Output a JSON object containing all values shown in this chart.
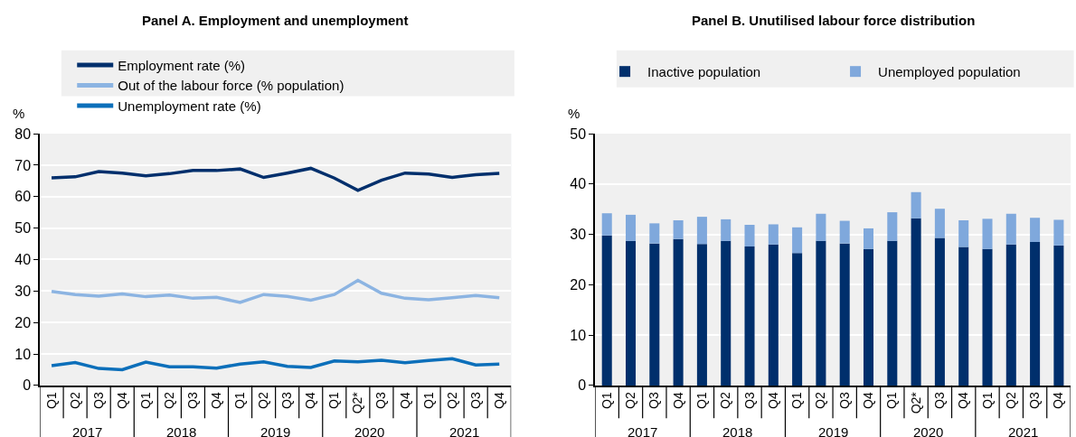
{
  "chart_data": [
    {
      "type": "line",
      "title": "Panel A. Employment and unemployment",
      "ylabel": "%",
      "categories": [
        "Q1",
        "Q2",
        "Q3",
        "Q4",
        "Q1",
        "Q2",
        "Q3",
        "Q4",
        "Q1",
        "Q2",
        "Q3",
        "Q4",
        "Q1",
        "Q2*",
        "Q3",
        "Q4",
        "Q1",
        "Q2",
        "Q3",
        "Q4"
      ],
      "annotations": [
        "2017",
        "2018",
        "2019",
        "2020",
        "2021"
      ],
      "series": [
        {
          "name": "Employment rate (%)",
          "color": "#002f6c",
          "values": [
            66.0,
            66.3,
            68.0,
            67.5,
            66.6,
            67.3,
            68.3,
            68.3,
            68.8,
            66.1,
            67.5,
            69.0,
            65.9,
            62.0,
            65.2,
            67.5,
            67.2,
            66.1,
            67.0,
            67.4
          ]
        },
        {
          "name": "Out of the labour force (% population)",
          "color": "#8cb4e2",
          "values": [
            29.9,
            28.9,
            28.4,
            29.1,
            28.2,
            28.7,
            27.7,
            28.0,
            26.4,
            28.9,
            28.3,
            27.1,
            28.9,
            33.4,
            29.3,
            27.7,
            27.2,
            27.9,
            28.6,
            27.9
          ]
        },
        {
          "name": "Unemployment rate (%)",
          "color": "#0c6fba",
          "values": [
            6.3,
            7.3,
            5.4,
            5.0,
            7.4,
            5.9,
            5.9,
            5.5,
            6.8,
            7.5,
            6.1,
            5.7,
            7.8,
            7.5,
            8.0,
            7.2,
            7.9,
            8.5,
            6.5,
            6.8
          ]
        }
      ],
      "ylim": [
        0,
        80
      ],
      "yticks": [
        0,
        10,
        20,
        30,
        40,
        50,
        60,
        70,
        80
      ],
      "grid": true,
      "legend": "top",
      "line_style": "solid",
      "marker": "none"
    },
    {
      "type": "bar",
      "title": "Panel B. Unutilised labour force distribution",
      "ylabel": "%",
      "categories": [
        "Q1",
        "Q2",
        "Q3",
        "Q4",
        "Q1",
        "Q2",
        "Q3",
        "Q4",
        "Q1",
        "Q2",
        "Q3",
        "Q4",
        "Q1",
        "Q2*",
        "Q3",
        "Q4",
        "Q1",
        "Q2",
        "Q3",
        "Q4"
      ],
      "annotations": [
        "2017",
        "2018",
        "2019",
        "2020",
        "2021"
      ],
      "stacked": true,
      "series": [
        {
          "name": "Inactive population",
          "color": "#002f6c",
          "values": [
            29.8,
            28.7,
            28.2,
            29.1,
            28.1,
            28.7,
            27.6,
            28.0,
            26.3,
            28.7,
            28.2,
            27.1,
            28.7,
            33.2,
            29.3,
            27.5,
            27.1,
            28.0,
            28.5,
            27.8
          ]
        },
        {
          "name": "Unemployed population",
          "color": "#7fa8dc",
          "values": [
            4.4,
            5.2,
            4.0,
            3.7,
            5.4,
            4.3,
            4.3,
            4.0,
            5.1,
            5.4,
            4.5,
            4.1,
            5.7,
            5.2,
            5.8,
            5.3,
            6.0,
            6.1,
            4.8,
            5.1
          ]
        }
      ],
      "ylim": [
        0,
        50
      ],
      "yticks": [
        0,
        10,
        20,
        30,
        40,
        50
      ],
      "grid": true,
      "legend": "top"
    }
  ]
}
